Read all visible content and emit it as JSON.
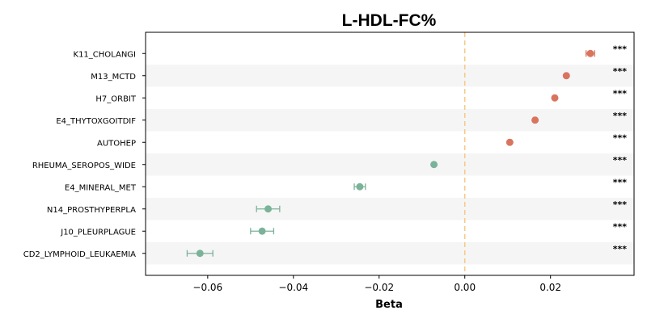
{
  "chart_data": {
    "type": "scatter",
    "subtype": "forest-plot",
    "title": "L-HDL-FC%",
    "xlabel": "Beta",
    "ylabel": "",
    "xlim": [
      -0.0745,
      0.0395
    ],
    "xticks": [
      "−0.06",
      "−0.04",
      "−0.02",
      "0.00",
      "0.02"
    ],
    "xtick_values": [
      -0.06,
      -0.04,
      -0.02,
      0.0,
      0.02
    ],
    "reference_line": 0.0,
    "grid": false,
    "row_banding": true,
    "colors": {
      "positive": "#d9745f",
      "negative": "#7bb39a",
      "reference_line": "#f5c98a",
      "band": "#f5f5f5"
    },
    "rows": [
      {
        "label": "K11_CHOLANGI",
        "beta": 0.0293,
        "ci_low": 0.0283,
        "ci_high": 0.0303,
        "significance": "***"
      },
      {
        "label": "M13_MCTD",
        "beta": 0.0237,
        "ci_low": 0.0234,
        "ci_high": 0.024,
        "significance": "***"
      },
      {
        "label": "H7_ORBIT",
        "beta": 0.021,
        "ci_low": 0.0207,
        "ci_high": 0.0213,
        "significance": "***"
      },
      {
        "label": "E4_THYTOXGOITDIF",
        "beta": 0.0164,
        "ci_low": 0.0161,
        "ci_high": 0.0167,
        "significance": "***"
      },
      {
        "label": "AUTOHEP",
        "beta": 0.0105,
        "ci_low": 0.0102,
        "ci_high": 0.0108,
        "significance": "***"
      },
      {
        "label": "RHEUMA_SEROPOS_WIDE",
        "beta": -0.0072,
        "ci_low": -0.0074,
        "ci_high": -0.007,
        "significance": "***"
      },
      {
        "label": "E4_MINERAL_MET",
        "beta": -0.0245,
        "ci_low": -0.0258,
        "ci_high": -0.0232,
        "significance": "***"
      },
      {
        "label": "N14_PROSTHYPERPLA",
        "beta": -0.0459,
        "ci_low": -0.0486,
        "ci_high": -0.0432,
        "significance": "***"
      },
      {
        "label": "J10_PLEURPLAGUE",
        "beta": -0.0473,
        "ci_low": -0.05,
        "ci_high": -0.0446,
        "significance": "***"
      },
      {
        "label": "CD2_LYMPHOID_LEUKAEMIA",
        "beta": -0.0618,
        "ci_low": -0.0648,
        "ci_high": -0.0588,
        "significance": "***"
      }
    ]
  }
}
